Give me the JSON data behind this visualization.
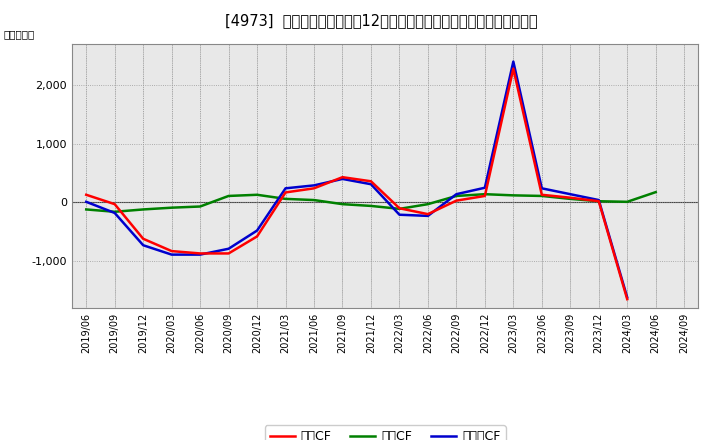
{
  "title": "[4973]  キャッシュフローの12か月移動合計の対前年同期増減額の推移",
  "ylabel": "（百万円）",
  "x_labels": [
    "2019/06",
    "2019/09",
    "2019/12",
    "2020/03",
    "2020/06",
    "2020/09",
    "2020/12",
    "2021/03",
    "2021/06",
    "2021/09",
    "2021/12",
    "2022/03",
    "2022/06",
    "2022/09",
    "2022/12",
    "2023/03",
    "2023/06",
    "2023/09",
    "2023/12",
    "2024/03",
    "2024/06",
    "2024/09"
  ],
  "eigyo_cf": [
    130,
    -30,
    -620,
    -830,
    -870,
    -870,
    -580,
    170,
    240,
    430,
    360,
    -100,
    -200,
    30,
    110,
    2280,
    130,
    80,
    20,
    -1650,
    null,
    null
  ],
  "toshi_cf": [
    -120,
    -160,
    -120,
    -90,
    -70,
    110,
    130,
    60,
    40,
    -30,
    -60,
    -110,
    -30,
    110,
    140,
    120,
    110,
    60,
    20,
    10,
    175,
    null
  ],
  "free_cf": [
    10,
    -180,
    -730,
    -890,
    -890,
    -790,
    -480,
    240,
    290,
    400,
    310,
    -210,
    -230,
    140,
    250,
    2400,
    240,
    140,
    40,
    -1620,
    null,
    null
  ],
  "eigyo_color": "#ff0000",
  "toshi_color": "#008000",
  "free_color": "#0000cd",
  "bg_color": "#ffffff",
  "plot_bg_color": "#e8e8e8",
  "ylim": [
    -1800,
    2700
  ],
  "yticks": [
    -1000,
    0,
    1000,
    2000
  ],
  "legend_labels": [
    "営業CF",
    "投資CF",
    "フリーCF"
  ],
  "line_width": 1.8
}
